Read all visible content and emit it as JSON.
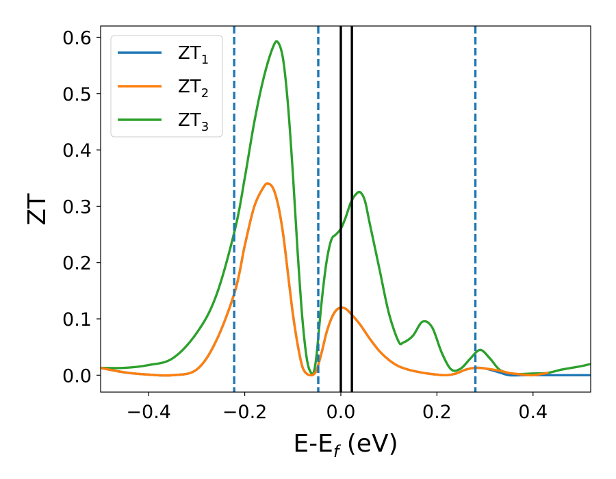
{
  "chart_data": {
    "type": "line",
    "xlabel": {
      "main": "E-E",
      "sub": "f",
      "suffix": " (eV)"
    },
    "ylabel": "ZT",
    "xlim": [
      -0.5,
      0.52
    ],
    "ylim": [
      -0.03,
      0.62
    ],
    "xticks": [
      {
        "value": -0.4,
        "label": "−0.4"
      },
      {
        "value": -0.2,
        "label": "−0.2"
      },
      {
        "value": 0.0,
        "label": "0.0"
      },
      {
        "value": 0.2,
        "label": "0.2"
      },
      {
        "value": 0.4,
        "label": "0.4"
      }
    ],
    "yticks": [
      {
        "value": 0.0,
        "label": "0.0"
      },
      {
        "value": 0.1,
        "label": "0.1"
      },
      {
        "value": 0.2,
        "label": "0.2"
      },
      {
        "value": 0.3,
        "label": "0.3"
      },
      {
        "value": 0.4,
        "label": "0.4"
      },
      {
        "value": 0.5,
        "label": "0.5"
      },
      {
        "value": 0.6,
        "label": "0.6"
      }
    ],
    "grid": false,
    "legend_position": "top-left",
    "series": [
      {
        "name": "ZT",
        "name_sub": "3",
        "color": "#2ca02c",
        "x": [
          -0.5,
          -0.45,
          -0.4,
          -0.35,
          -0.3,
          -0.26,
          -0.22,
          -0.2,
          -0.18,
          -0.16,
          -0.14,
          -0.13,
          -0.12,
          -0.11,
          -0.1,
          -0.09,
          -0.08,
          -0.07,
          -0.06,
          -0.055,
          -0.05,
          -0.04,
          -0.03,
          -0.02,
          -0.01,
          0.0,
          0.01,
          0.02,
          0.03,
          0.04,
          0.05,
          0.06,
          0.08,
          0.1,
          0.12,
          0.13,
          0.15,
          0.17,
          0.19,
          0.21,
          0.23,
          0.25,
          0.27,
          0.29,
          0.31,
          0.33,
          0.35,
          0.37,
          0.4,
          0.43,
          0.46,
          0.5,
          0.52
        ],
        "y": [
          0.013,
          0.013,
          0.018,
          0.03,
          0.075,
          0.14,
          0.26,
          0.35,
          0.45,
          0.53,
          0.585,
          0.59,
          0.56,
          0.48,
          0.36,
          0.22,
          0.1,
          0.025,
          0.002,
          0.01,
          0.04,
          0.13,
          0.2,
          0.24,
          0.25,
          0.26,
          0.28,
          0.305,
          0.32,
          0.325,
          0.31,
          0.27,
          0.19,
          0.11,
          0.06,
          0.058,
          0.07,
          0.095,
          0.085,
          0.04,
          0.01,
          0.012,
          0.03,
          0.045,
          0.03,
          0.01,
          0.004,
          0.002,
          0.003,
          0.004,
          0.01,
          0.016,
          0.02
        ]
      },
      {
        "name": "ZT",
        "name_sub": "1",
        "color": "#1f77b4",
        "x": [
          -0.5,
          -0.45,
          -0.4,
          -0.35,
          -0.3,
          -0.26,
          -0.22,
          -0.2,
          -0.18,
          -0.16,
          -0.15,
          -0.14,
          -0.13,
          -0.12,
          -0.11,
          -0.1,
          -0.09,
          -0.08,
          -0.07,
          -0.06,
          -0.055,
          -0.05,
          -0.04,
          -0.03,
          -0.02,
          -0.01,
          0.0,
          0.01,
          0.02,
          0.04,
          0.06,
          0.08,
          0.1,
          0.12,
          0.14,
          0.16,
          0.18,
          0.2,
          0.22,
          0.24,
          0.26,
          0.28,
          0.3,
          0.33,
          0.35,
          0.38,
          0.4,
          0.45,
          0.5,
          0.52
        ],
        "y": [
          0.013,
          0.005,
          0.001,
          0.0,
          0.01,
          0.06,
          0.15,
          0.23,
          0.3,
          0.335,
          0.34,
          0.33,
          0.3,
          0.25,
          0.18,
          0.11,
          0.055,
          0.015,
          0.002,
          0.0,
          0.003,
          0.01,
          0.04,
          0.075,
          0.1,
          0.115,
          0.12,
          0.118,
          0.11,
          0.09,
          0.065,
          0.043,
          0.027,
          0.016,
          0.01,
          0.006,
          0.003,
          0.001,
          0.0,
          0.003,
          0.01,
          0.013,
          0.012,
          0.005,
          0.0,
          0.0,
          0.0,
          0.0,
          0.0,
          0.0
        ]
      },
      {
        "name": "ZT",
        "name_sub": "2",
        "color": "#ff7f0e",
        "x": [
          -0.5,
          -0.45,
          -0.4,
          -0.35,
          -0.3,
          -0.26,
          -0.22,
          -0.2,
          -0.18,
          -0.16,
          -0.15,
          -0.14,
          -0.13,
          -0.12,
          -0.11,
          -0.1,
          -0.09,
          -0.08,
          -0.07,
          -0.06,
          -0.055,
          -0.05,
          -0.04,
          -0.03,
          -0.02,
          -0.01,
          0.0,
          0.01,
          0.02,
          0.04,
          0.06,
          0.08,
          0.1,
          0.12,
          0.14,
          0.16,
          0.18,
          0.2,
          0.22,
          0.24,
          0.26,
          0.28,
          0.3,
          0.33,
          0.35,
          0.38,
          0.4,
          0.43
        ],
        "y": [
          0.013,
          0.005,
          0.001,
          0.0,
          0.01,
          0.06,
          0.15,
          0.23,
          0.3,
          0.335,
          0.34,
          0.33,
          0.3,
          0.25,
          0.18,
          0.11,
          0.055,
          0.015,
          0.002,
          0.0,
          0.003,
          0.01,
          0.04,
          0.075,
          0.1,
          0.115,
          0.12,
          0.118,
          0.11,
          0.09,
          0.065,
          0.043,
          0.027,
          0.016,
          0.01,
          0.006,
          0.003,
          0.001,
          0.0,
          0.003,
          0.01,
          0.013,
          0.012,
          0.008,
          0.004,
          0.001,
          0.0,
          0.004
        ]
      }
    ],
    "legend_order": [
      1,
      2,
      0
    ],
    "vlines_dashed": {
      "color": "#1f77b4",
      "x": [
        -0.222,
        -0.047,
        0.28
      ]
    },
    "vlines_solid": {
      "color": "#000000",
      "x": [
        0.0,
        0.023
      ]
    }
  }
}
